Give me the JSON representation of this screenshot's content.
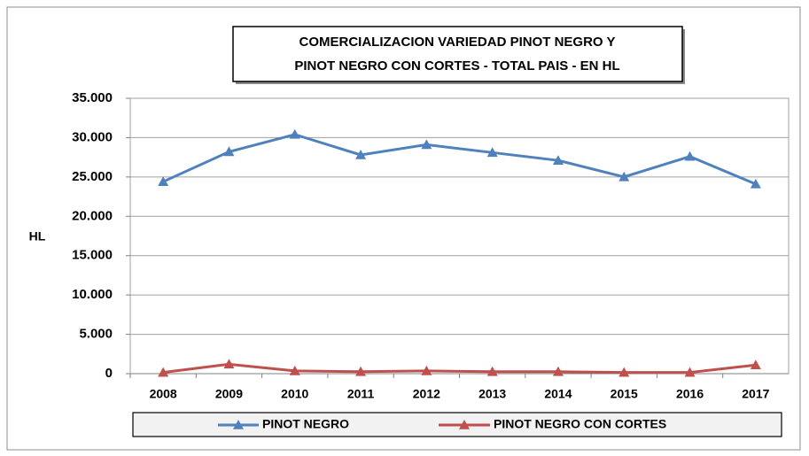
{
  "chart_data": {
    "type": "line",
    "title": [
      "COMERCIALIZACION VARIEDAD PINOT NEGRO  Y",
      "PINOT NEGRO CON CORTES - TOTAL PAIS - EN HL"
    ],
    "y_label": "HL",
    "categories": [
      "2008",
      "2009",
      "2010",
      "2011",
      "2012",
      "2013",
      "2014",
      "2015",
      "2016",
      "2017"
    ],
    "series": [
      {
        "name": "PINOT NEGRO",
        "color": "#4f81bd",
        "values": [
          24400,
          28200,
          30400,
          27800,
          29100,
          28100,
          27100,
          25000,
          27600,
          24100
        ]
      },
      {
        "name": "PINOT NEGRO CON CORTES",
        "color": "#c0504d",
        "values": [
          150,
          1200,
          350,
          250,
          350,
          250,
          250,
          150,
          150,
          1100
        ]
      }
    ],
    "ylim": [
      0,
      35000
    ],
    "yticks": [
      0,
      {
        "value": 5000,
        "label": "5.000"
      },
      {
        "value": 10000,
        "label": "10.000"
      },
      {
        "value": 15000,
        "label": "15.000"
      },
      {
        "value": 20000,
        "label": "20.000"
      },
      {
        "value": 25000,
        "label": "25.000"
      },
      {
        "value": 30000,
        "label": "30.000"
      },
      {
        "value": 35000,
        "label": "35.000"
      }
    ],
    "grid": true,
    "legend": "bottom"
  }
}
